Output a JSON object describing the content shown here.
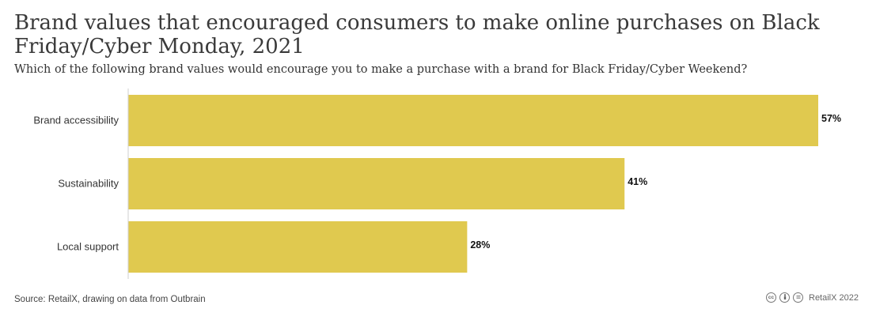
{
  "chart_data": {
    "type": "bar",
    "orientation": "horizontal",
    "title": "Brand values that encouraged consumers to make online purchases on Black Friday/Cyber Monday, 2021",
    "subtitle": "Which of the following brand values would encourage you to make a purchase with a brand for Black Friday/Cyber Weekend?",
    "categories": [
      "Brand accessibility",
      "Sustainability",
      "Local support"
    ],
    "values": [
      57,
      41,
      28
    ],
    "value_labels": [
      "57%",
      "41%",
      "28%"
    ],
    "xlim": [
      0,
      57
    ],
    "bar_color": "#e0c94f",
    "grid": false
  },
  "footer": {
    "source": "Source: RetailX, drawing on data from Outbrain",
    "license_icons": [
      "cc-icon",
      "by-icon",
      "equals-icon"
    ],
    "credit": "RetailX 2022"
  }
}
